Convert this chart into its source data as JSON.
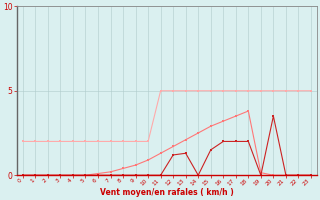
{
  "x": [
    0,
    1,
    2,
    3,
    4,
    5,
    6,
    7,
    8,
    9,
    10,
    11,
    12,
    13,
    14,
    15,
    16,
    17,
    18,
    19,
    20,
    21,
    22,
    23
  ],
  "y_light": [
    2,
    2,
    2,
    2,
    2,
    2,
    2,
    2,
    2,
    2,
    2,
    5,
    5,
    5,
    5,
    5,
    5,
    5,
    5,
    5,
    5,
    5,
    5,
    5
  ],
  "y_mid": [
    0,
    0,
    0,
    0,
    0,
    0,
    0.1,
    0.2,
    0.4,
    0.6,
    0.9,
    1.3,
    1.7,
    2.1,
    2.5,
    2.9,
    3.2,
    3.5,
    3.8,
    0.15,
    0,
    0,
    0,
    0
  ],
  "y_dark": [
    0,
    0,
    0,
    0,
    0,
    0,
    0,
    0,
    0,
    0,
    0,
    0,
    1.2,
    1.3,
    0,
    1.5,
    2,
    2,
    2,
    0,
    3.5,
    0,
    0,
    0
  ],
  "color_light": "#ffaaaa",
  "color_mid": "#ff7777",
  "color_dark": "#cc2222",
  "bg_color": "#daf0f0",
  "grid_color": "#b0cccc",
  "axis_color": "#cc0000",
  "spine_color": "#888888",
  "xlabel": "Vent moyen/en rafales ( km/h )",
  "ylim": [
    0,
    10
  ],
  "xlim": [
    -0.5,
    23.5
  ],
  "yticks": [
    0,
    5,
    10
  ],
  "xticks": [
    0,
    1,
    2,
    3,
    4,
    5,
    6,
    7,
    8,
    9,
    10,
    11,
    12,
    13,
    14,
    15,
    16,
    17,
    18,
    19,
    20,
    21,
    22,
    23
  ]
}
